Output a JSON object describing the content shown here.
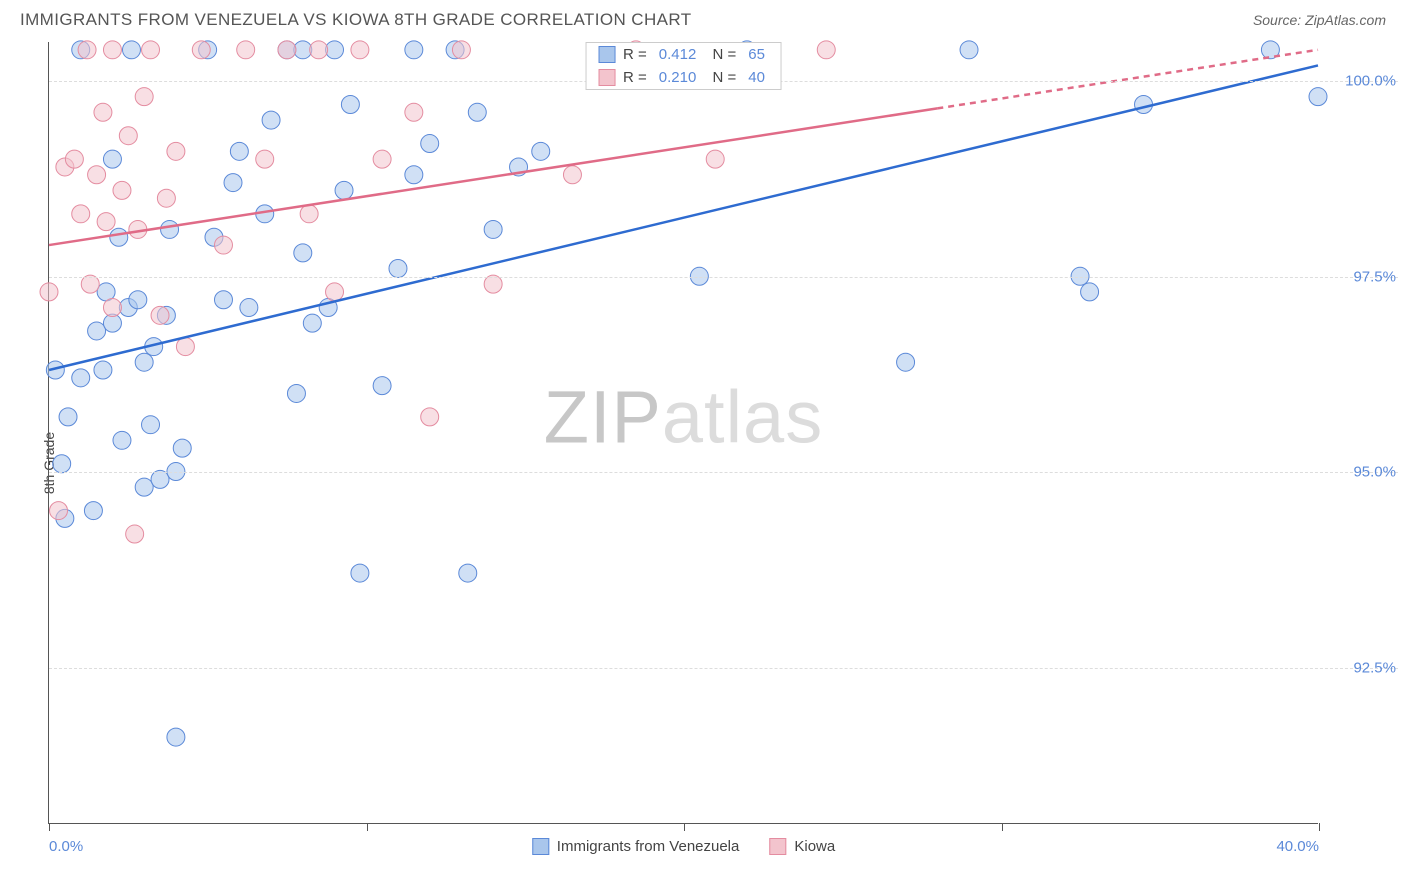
{
  "title": "IMMIGRANTS FROM VENEZUELA VS KIOWA 8TH GRADE CORRELATION CHART",
  "source": "Source: ZipAtlas.com",
  "ylabel": "8th Grade",
  "watermark_bold": "ZIP",
  "watermark_rest": "atlas",
  "chart": {
    "type": "scatter",
    "xlim": [
      0,
      40
    ],
    "ylim": [
      90.5,
      100.5
    ],
    "xticks": [
      0,
      10,
      20,
      30,
      40
    ],
    "xticklabels": [
      "0.0%",
      "",
      "",
      "",
      "40.0%"
    ],
    "ygrid": [
      92.5,
      95.0,
      97.5,
      100.0
    ],
    "yticklabels": [
      "92.5%",
      "95.0%",
      "97.5%",
      "100.0%"
    ],
    "background_color": "#ffffff",
    "grid_color": "#dddddd",
    "axis_color": "#555555",
    "label_color": "#5b89d8",
    "marker_radius": 9,
    "marker_opacity": 0.55,
    "series": [
      {
        "name": "Immigrants from Venezuela",
        "color_fill": "#a9c6ec",
        "color_stroke": "#5b89d8",
        "r_value": "0.412",
        "n_value": "65",
        "trend": {
          "x1": 0,
          "y1": 96.3,
          "x2": 40,
          "y2": 100.2,
          "color": "#2e6bd0",
          "width": 2.5
        },
        "points": [
          [
            0.2,
            96.3
          ],
          [
            0.4,
            95.1
          ],
          [
            0.5,
            94.4
          ],
          [
            0.6,
            95.7
          ],
          [
            1.0,
            96.2
          ],
          [
            1.0,
            100.4
          ],
          [
            1.4,
            94.5
          ],
          [
            1.5,
            96.8
          ],
          [
            1.7,
            96.3
          ],
          [
            1.8,
            97.3
          ],
          [
            2.0,
            99.0
          ],
          [
            2.0,
            96.9
          ],
          [
            2.2,
            98.0
          ],
          [
            2.3,
            95.4
          ],
          [
            2.5,
            97.1
          ],
          [
            2.6,
            100.4
          ],
          [
            2.8,
            97.2
          ],
          [
            3.0,
            96.4
          ],
          [
            3.0,
            94.8
          ],
          [
            3.2,
            95.6
          ],
          [
            3.3,
            96.6
          ],
          [
            3.5,
            94.9
          ],
          [
            3.7,
            97.0
          ],
          [
            3.8,
            98.1
          ],
          [
            4.0,
            95.0
          ],
          [
            4.0,
            91.6
          ],
          [
            4.2,
            95.3
          ],
          [
            5.0,
            100.4
          ],
          [
            5.2,
            98.0
          ],
          [
            5.5,
            97.2
          ],
          [
            5.8,
            98.7
          ],
          [
            6.0,
            99.1
          ],
          [
            6.3,
            97.1
          ],
          [
            6.8,
            98.3
          ],
          [
            7.0,
            99.5
          ],
          [
            7.5,
            100.4
          ],
          [
            7.8,
            96.0
          ],
          [
            8.0,
            97.8
          ],
          [
            8.0,
            100.4
          ],
          [
            8.3,
            96.9
          ],
          [
            8.8,
            97.1
          ],
          [
            9.0,
            100.4
          ],
          [
            9.3,
            98.6
          ],
          [
            9.5,
            99.7
          ],
          [
            9.8,
            93.7
          ],
          [
            10.5,
            96.1
          ],
          [
            11.0,
            97.6
          ],
          [
            11.5,
            98.8
          ],
          [
            11.5,
            100.4
          ],
          [
            12.0,
            99.2
          ],
          [
            12.8,
            100.4
          ],
          [
            13.2,
            93.7
          ],
          [
            13.5,
            99.6
          ],
          [
            14.0,
            98.1
          ],
          [
            14.8,
            98.9
          ],
          [
            15.5,
            99.1
          ],
          [
            20.5,
            97.5
          ],
          [
            22.0,
            100.4
          ],
          [
            27.0,
            96.4
          ],
          [
            29.0,
            100.4
          ],
          [
            32.5,
            97.5
          ],
          [
            32.8,
            97.3
          ],
          [
            34.5,
            99.7
          ],
          [
            38.5,
            100.4
          ],
          [
            40.0,
            99.8
          ]
        ]
      },
      {
        "name": "Kiowa",
        "color_fill": "#f3c4cd",
        "color_stroke": "#e48ca0",
        "r_value": "0.210",
        "n_value": "40",
        "trend": {
          "x1": 0,
          "y1": 97.9,
          "x2": 40,
          "y2": 100.4,
          "dash_from_x": 28,
          "color": "#e06b87",
          "width": 2.5
        },
        "points": [
          [
            0.0,
            97.3
          ],
          [
            0.3,
            94.5
          ],
          [
            0.5,
            98.9
          ],
          [
            0.8,
            99.0
          ],
          [
            1.0,
            98.3
          ],
          [
            1.2,
            100.4
          ],
          [
            1.3,
            97.4
          ],
          [
            1.5,
            98.8
          ],
          [
            1.7,
            99.6
          ],
          [
            1.8,
            98.2
          ],
          [
            2.0,
            97.1
          ],
          [
            2.0,
            100.4
          ],
          [
            2.3,
            98.6
          ],
          [
            2.5,
            99.3
          ],
          [
            2.7,
            94.2
          ],
          [
            2.8,
            98.1
          ],
          [
            3.0,
            99.8
          ],
          [
            3.2,
            100.4
          ],
          [
            3.5,
            97.0
          ],
          [
            3.7,
            98.5
          ],
          [
            4.0,
            99.1
          ],
          [
            4.3,
            96.6
          ],
          [
            4.8,
            100.4
          ],
          [
            5.5,
            97.9
          ],
          [
            6.2,
            100.4
          ],
          [
            6.8,
            99.0
          ],
          [
            7.5,
            100.4
          ],
          [
            8.2,
            98.3
          ],
          [
            8.5,
            100.4
          ],
          [
            9.0,
            97.3
          ],
          [
            9.8,
            100.4
          ],
          [
            10.5,
            99.0
          ],
          [
            11.5,
            99.6
          ],
          [
            12.0,
            95.7
          ],
          [
            13.0,
            100.4
          ],
          [
            14.0,
            97.4
          ],
          [
            16.5,
            98.8
          ],
          [
            18.5,
            100.4
          ],
          [
            21.0,
            99.0
          ],
          [
            24.5,
            100.4
          ]
        ]
      }
    ],
    "legend_top": {
      "r_label": "R =",
      "n_label": "N ="
    },
    "legend_bottom": [
      {
        "label": "Immigrants from Venezuela",
        "fill": "#a9c6ec",
        "stroke": "#5b89d8"
      },
      {
        "label": "Kiowa",
        "fill": "#f3c4cd",
        "stroke": "#e48ca0"
      }
    ]
  }
}
